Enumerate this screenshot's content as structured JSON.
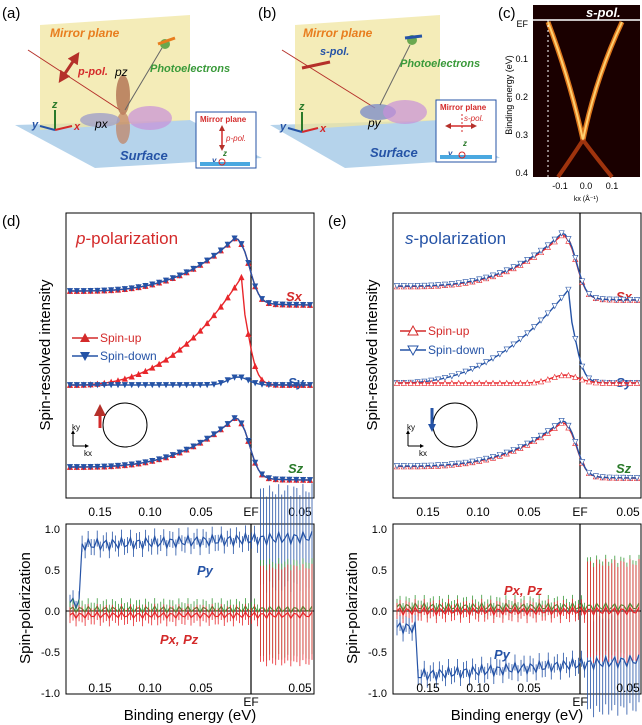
{
  "panels": {
    "a": {
      "label": "(a)",
      "mirror_plane": "Mirror plane",
      "polarization": "p-pol.",
      "photoelectrons": "Photoelectrons",
      "orbital_pz": "pz",
      "orbital_px": "px",
      "surface": "Surface",
      "axis_z": "z",
      "axis_y": "y",
      "axis_x": "x",
      "inset": {
        "title": "Mirror plane",
        "pol": "p-pol.",
        "z": "z",
        "y": "y"
      }
    },
    "b": {
      "label": "(b)",
      "mirror_plane": "Mirror plane",
      "polarization": "s-pol.",
      "photoelectrons": "Photoelectrons",
      "orbital_py": "py",
      "surface": "Surface",
      "axis_z": "z",
      "axis_y": "y",
      "axis_x": "x",
      "inset": {
        "title": "Mirror plane",
        "pol": "s-pol.",
        "z": "z",
        "y": "y"
      }
    },
    "c": {
      "label": "(c)",
      "title": "s-pol.",
      "ylabel": "Binding energy (eV)",
      "xlabel": "kx (Å⁻¹)",
      "yticks": [
        "EF",
        "0.1",
        "0.2",
        "0.3",
        "0.4"
      ],
      "xticks": [
        "-0.1",
        "0.0",
        "0.1"
      ]
    },
    "d": {
      "label": "(d)",
      "title_italic": "p",
      "title_rest": "-polarization",
      "ylabel": "Spin-resolved intensity",
      "curves": [
        "Sx",
        "Sy",
        "Sz"
      ],
      "legend": [
        "Spin-up",
        "Spin-down"
      ],
      "k_labels": {
        "ky": "ky",
        "kx": "kx"
      },
      "xticks": [
        "0.15",
        "0.10",
        "0.05",
        "EF",
        "0.05"
      ],
      "pol_ylabel": "Spin-polarization",
      "pol_yticks": [
        "1.0",
        "0.5",
        "0.0",
        "-0.5",
        "-1.0"
      ],
      "pol_labels": {
        "py": "Py",
        "pxpz": "Px, Pz"
      },
      "xlabel": "Binding energy (eV)"
    },
    "e": {
      "label": "(e)",
      "title_italic": "s",
      "title_rest": "-polarization",
      "ylabel": "Spin-resolved intensity",
      "curves": [
        "Sx",
        "Sy",
        "Sz"
      ],
      "legend": [
        "Spin-up",
        "Spin-down"
      ],
      "k_labels": {
        "ky": "ky",
        "kx": "kx"
      },
      "xticks": [
        "0.15",
        "0.10",
        "0.05",
        "EF",
        "0.05"
      ],
      "pol_ylabel": "Spin-polarization",
      "pol_yticks": [
        "1.0",
        "0.5",
        "0.0",
        "-0.5",
        "-1.0"
      ],
      "pol_labels": {
        "pxpz": "Px, Pz",
        "py": "Py"
      },
      "xlabel": "Binding energy (eV)"
    }
  },
  "colors": {
    "up": "#e8262b",
    "down": "#2553a6",
    "green": "#3a9a3a",
    "orange": "#e87d1e"
  }
}
